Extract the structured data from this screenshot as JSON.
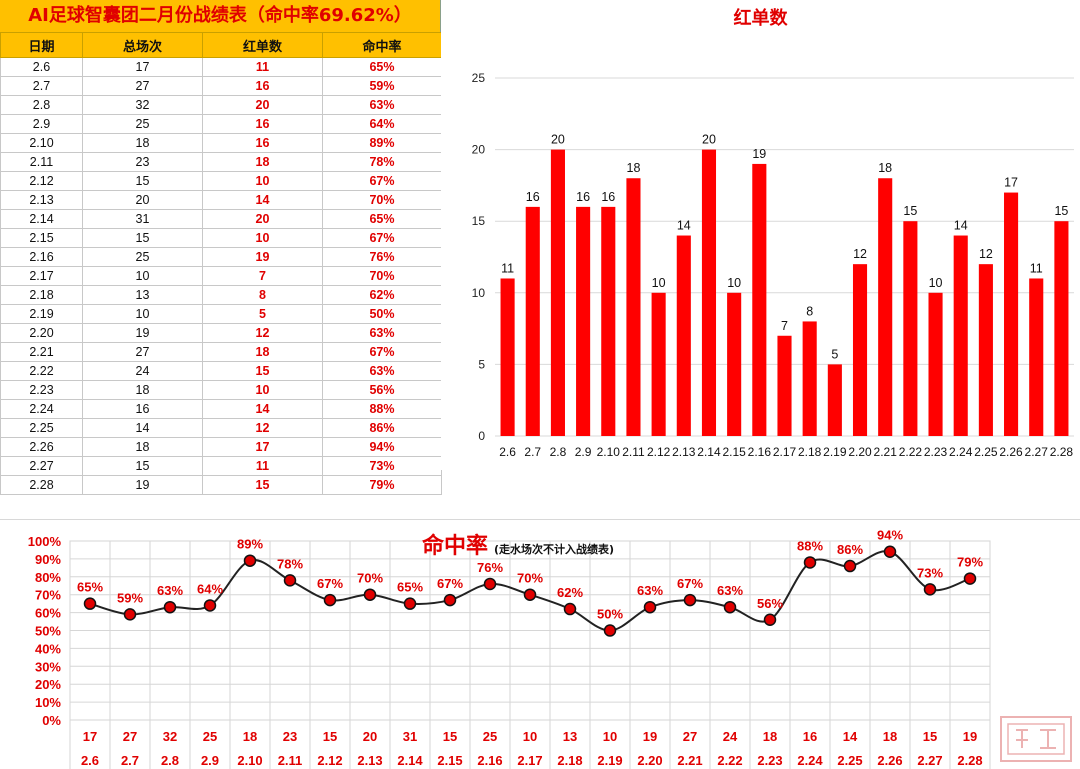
{
  "table": {
    "title": "AI足球智囊团二月份战绩表（命中率69.62%）",
    "headers": [
      "日期",
      "总场次",
      "红单数",
      "命中率"
    ],
    "rows": [
      [
        "2.6",
        "17",
        "11",
        "65%"
      ],
      [
        "2.7",
        "27",
        "16",
        "59%"
      ],
      [
        "2.8",
        "32",
        "20",
        "63%"
      ],
      [
        "2.9",
        "25",
        "16",
        "64%"
      ],
      [
        "2.10",
        "18",
        "16",
        "89%"
      ],
      [
        "2.11",
        "23",
        "18",
        "78%"
      ],
      [
        "2.12",
        "15",
        "10",
        "67%"
      ],
      [
        "2.13",
        "20",
        "14",
        "70%"
      ],
      [
        "2.14",
        "31",
        "20",
        "65%"
      ],
      [
        "2.15",
        "15",
        "10",
        "67%"
      ],
      [
        "2.16",
        "25",
        "19",
        "76%"
      ],
      [
        "2.17",
        "10",
        "7",
        "70%"
      ],
      [
        "2.18",
        "13",
        "8",
        "62%"
      ],
      [
        "2.19",
        "10",
        "5",
        "50%"
      ],
      [
        "2.20",
        "19",
        "12",
        "63%"
      ],
      [
        "2.21",
        "27",
        "18",
        "67%"
      ],
      [
        "2.22",
        "24",
        "15",
        "63%"
      ],
      [
        "2.23",
        "18",
        "10",
        "56%"
      ],
      [
        "2.24",
        "16",
        "14",
        "88%"
      ],
      [
        "2.25",
        "14",
        "12",
        "86%"
      ],
      [
        "2.26",
        "18",
        "17",
        "94%"
      ],
      [
        "2.27",
        "15",
        "11",
        "73%"
      ],
      [
        "2.28",
        "19",
        "15",
        "79%"
      ]
    ]
  },
  "colors": {
    "accent_red": "#ff0000",
    "label_red": "#e00000",
    "header_yellow": "#ffc000"
  },
  "chart_data": [
    {
      "type": "bar",
      "title": "红单数",
      "categories": [
        "2.6",
        "2.7",
        "2.8",
        "2.9",
        "2.10",
        "2.11",
        "2.12",
        "2.13",
        "2.14",
        "2.15",
        "2.16",
        "2.17",
        "2.18",
        "2.19",
        "2.20",
        "2.21",
        "2.22",
        "2.23",
        "2.24",
        "2.25",
        "2.26",
        "2.27",
        "2.28"
      ],
      "values": [
        11,
        16,
        20,
        16,
        16,
        18,
        10,
        14,
        20,
        10,
        19,
        7,
        8,
        5,
        12,
        18,
        15,
        10,
        14,
        12,
        17,
        11,
        15
      ],
      "ylim": [
        0,
        25
      ],
      "yticks": [
        0,
        5,
        10,
        15,
        20,
        25
      ],
      "grid": true,
      "data_labels": true
    },
    {
      "type": "line",
      "title": "命中率",
      "subtitle": "(走水场次不计入战绩表)",
      "categories": [
        "2.6",
        "2.7",
        "2.8",
        "2.9",
        "2.10",
        "2.11",
        "2.12",
        "2.13",
        "2.14",
        "2.15",
        "2.16",
        "2.17",
        "2.18",
        "2.19",
        "2.20",
        "2.21",
        "2.22",
        "2.23",
        "2.24",
        "2.25",
        "2.26",
        "2.27",
        "2.28"
      ],
      "values": [
        65,
        59,
        63,
        64,
        89,
        78,
        67,
        70,
        65,
        67,
        76,
        70,
        62,
        50,
        63,
        67,
        63,
        56,
        88,
        86,
        94,
        73,
        79
      ],
      "value_labels": [
        "65%",
        "59%",
        "63%",
        "64%",
        "89%",
        "78%",
        "67%",
        "70%",
        "65%",
        "67%",
        "76%",
        "70%",
        "62%",
        "50%",
        "63%",
        "67%",
        "63%",
        "56%",
        "88%",
        "86%",
        "94%",
        "73%",
        "79%"
      ],
      "totals": [
        "17",
        "27",
        "32",
        "25",
        "18",
        "23",
        "15",
        "20",
        "31",
        "15",
        "25",
        "10",
        "13",
        "10",
        "19",
        "27",
        "24",
        "18",
        "16",
        "14",
        "18",
        "15",
        "19"
      ],
      "ylim": [
        0,
        100
      ],
      "yticks": [
        "0%",
        "10%",
        "20%",
        "30%",
        "40%",
        "50%",
        "60%",
        "70%",
        "80%",
        "90%",
        "100%"
      ],
      "grid": true,
      "smooth": true
    }
  ]
}
